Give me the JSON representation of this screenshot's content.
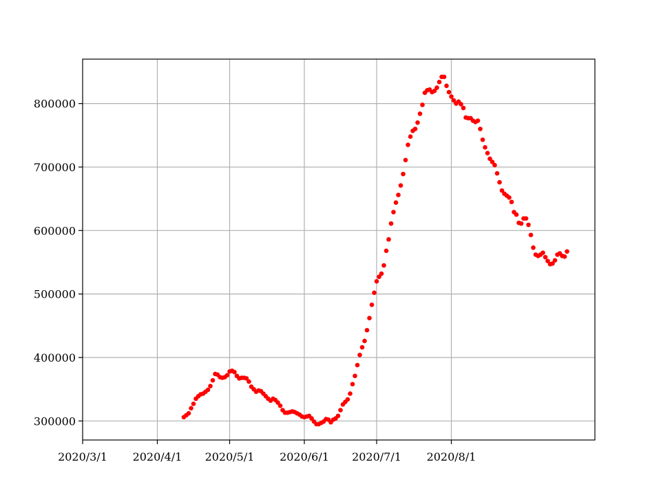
{
  "chart_data": {
    "type": "scatter",
    "title": "",
    "xlabel": "",
    "ylabel": "",
    "grid": true,
    "legend": "none",
    "marker_color": "#ff0000",
    "x_axis": {
      "type": "date",
      "range": [
        "2020-03-01",
        "2020-09-08"
      ],
      "ticks": [
        {
          "value": "2020-03-01",
          "label": "2020/3/1"
        },
        {
          "value": "2020-04-01",
          "label": "2020/4/1"
        },
        {
          "value": "2020-05-01",
          "label": "2020/5/1"
        },
        {
          "value": "2020-06-01",
          "label": "2020/6/1"
        },
        {
          "value": "2020-07-01",
          "label": "2020/7/1"
        },
        {
          "value": "2020-08-01",
          "label": "2020/8/1"
        }
      ]
    },
    "y_axis": {
      "range": [
        270000,
        870000
      ],
      "ticks": [
        {
          "value": 300000,
          "label": "300000"
        },
        {
          "value": 400000,
          "label": "400000"
        },
        {
          "value": 500000,
          "label": "500000"
        },
        {
          "value": 600000,
          "label": "600000"
        },
        {
          "value": 700000,
          "label": "700000"
        },
        {
          "value": 800000,
          "label": "800000"
        }
      ]
    },
    "series": [
      {
        "points": [
          [
            "2020-04-12",
            306000
          ],
          [
            "2020-04-13",
            309000
          ],
          [
            "2020-04-14",
            312000
          ],
          [
            "2020-04-15",
            320000
          ],
          [
            "2020-04-16",
            327000
          ],
          [
            "2020-04-17",
            335000
          ],
          [
            "2020-04-18",
            339000
          ],
          [
            "2020-04-19",
            342000
          ],
          [
            "2020-04-20",
            343000
          ],
          [
            "2020-04-21",
            346000
          ],
          [
            "2020-04-22",
            349000
          ],
          [
            "2020-04-23",
            355000
          ],
          [
            "2020-04-24",
            364000
          ],
          [
            "2020-04-25",
            374000
          ],
          [
            "2020-04-26",
            373000
          ],
          [
            "2020-04-27",
            369000
          ],
          [
            "2020-04-28",
            368000
          ],
          [
            "2020-04-29",
            369000
          ],
          [
            "2020-04-30",
            372000
          ],
          [
            "2020-05-01",
            378000
          ],
          [
            "2020-05-02",
            379000
          ],
          [
            "2020-05-03",
            377000
          ],
          [
            "2020-05-04",
            371000
          ],
          [
            "2020-05-05",
            367000
          ],
          [
            "2020-05-06",
            368000
          ],
          [
            "2020-05-07",
            368000
          ],
          [
            "2020-05-08",
            367000
          ],
          [
            "2020-05-09",
            362000
          ],
          [
            "2020-05-10",
            354000
          ],
          [
            "2020-05-11",
            350000
          ],
          [
            "2020-05-12",
            346000
          ],
          [
            "2020-05-13",
            348000
          ],
          [
            "2020-05-14",
            347000
          ],
          [
            "2020-05-15",
            343000
          ],
          [
            "2020-05-16",
            339000
          ],
          [
            "2020-05-17",
            335000
          ],
          [
            "2020-05-18",
            332000
          ],
          [
            "2020-05-19",
            335000
          ],
          [
            "2020-05-20",
            333000
          ],
          [
            "2020-05-21",
            329000
          ],
          [
            "2020-05-22",
            324000
          ],
          [
            "2020-05-23",
            317000
          ],
          [
            "2020-05-24",
            313000
          ],
          [
            "2020-05-25",
            313000
          ],
          [
            "2020-05-26",
            314000
          ],
          [
            "2020-05-27",
            315000
          ],
          [
            "2020-05-28",
            314000
          ],
          [
            "2020-05-29",
            312000
          ],
          [
            "2020-05-30",
            310000
          ],
          [
            "2020-05-31",
            307000
          ],
          [
            "2020-06-01",
            306000
          ],
          [
            "2020-06-02",
            307000
          ],
          [
            "2020-06-03",
            308000
          ],
          [
            "2020-06-04",
            304000
          ],
          [
            "2020-06-05",
            299000
          ],
          [
            "2020-06-06",
            295000
          ],
          [
            "2020-06-07",
            295000
          ],
          [
            "2020-06-08",
            297000
          ],
          [
            "2020-06-09",
            299000
          ],
          [
            "2020-06-10",
            303000
          ],
          [
            "2020-06-11",
            302000
          ],
          [
            "2020-06-12",
            298000
          ],
          [
            "2020-06-13",
            302000
          ],
          [
            "2020-06-14",
            304000
          ],
          [
            "2020-06-15",
            308000
          ],
          [
            "2020-06-16",
            317000
          ],
          [
            "2020-06-17",
            326000
          ],
          [
            "2020-06-18",
            330000
          ],
          [
            "2020-06-19",
            334000
          ],
          [
            "2020-06-20",
            343000
          ],
          [
            "2020-06-21",
            358000
          ],
          [
            "2020-06-22",
            371000
          ],
          [
            "2020-06-23",
            388000
          ],
          [
            "2020-06-24",
            404000
          ],
          [
            "2020-06-25",
            416000
          ],
          [
            "2020-06-26",
            426000
          ],
          [
            "2020-06-27",
            443000
          ],
          [
            "2020-06-28",
            462000
          ],
          [
            "2020-06-29",
            483000
          ],
          [
            "2020-06-30",
            502000
          ],
          [
            "2020-07-01",
            520000
          ],
          [
            "2020-07-02",
            527000
          ],
          [
            "2020-07-03",
            532000
          ],
          [
            "2020-07-04",
            545000
          ],
          [
            "2020-07-05",
            568000
          ],
          [
            "2020-07-06",
            586000
          ],
          [
            "2020-07-07",
            611000
          ],
          [
            "2020-07-08",
            629000
          ],
          [
            "2020-07-09",
            644000
          ],
          [
            "2020-07-10",
            656000
          ],
          [
            "2020-07-11",
            671000
          ],
          [
            "2020-07-12",
            689000
          ],
          [
            "2020-07-13",
            711000
          ],
          [
            "2020-07-14",
            735000
          ],
          [
            "2020-07-15",
            748000
          ],
          [
            "2020-07-16",
            757000
          ],
          [
            "2020-07-17",
            760000
          ],
          [
            "2020-07-18",
            770000
          ],
          [
            "2020-07-19",
            784000
          ],
          [
            "2020-07-20",
            798000
          ],
          [
            "2020-07-21",
            817000
          ],
          [
            "2020-07-22",
            821000
          ],
          [
            "2020-07-23",
            822000
          ],
          [
            "2020-07-24",
            818000
          ],
          [
            "2020-07-25",
            820000
          ],
          [
            "2020-07-26",
            825000
          ],
          [
            "2020-07-27",
            834000
          ],
          [
            "2020-07-28",
            842000
          ],
          [
            "2020-07-29",
            842000
          ],
          [
            "2020-07-30",
            828000
          ],
          [
            "2020-07-31",
            818000
          ],
          [
            "2020-08-01",
            811000
          ],
          [
            "2020-08-02",
            805000
          ],
          [
            "2020-08-03",
            800000
          ],
          [
            "2020-08-04",
            803000
          ],
          [
            "2020-08-05",
            799000
          ],
          [
            "2020-08-06",
            793000
          ],
          [
            "2020-08-07",
            778000
          ],
          [
            "2020-08-08",
            777000
          ],
          [
            "2020-08-09",
            777000
          ],
          [
            "2020-08-10",
            773000
          ],
          [
            "2020-08-11",
            771000
          ],
          [
            "2020-08-12",
            773000
          ],
          [
            "2020-08-13",
            760000
          ],
          [
            "2020-08-14",
            743000
          ],
          [
            "2020-08-15",
            731000
          ],
          [
            "2020-08-16",
            722000
          ],
          [
            "2020-08-17",
            713000
          ],
          [
            "2020-08-18",
            708000
          ],
          [
            "2020-08-19",
            703000
          ],
          [
            "2020-08-20",
            690000
          ],
          [
            "2020-08-21",
            676000
          ],
          [
            "2020-08-22",
            663000
          ],
          [
            "2020-08-23",
            658000
          ],
          [
            "2020-08-24",
            655000
          ],
          [
            "2020-08-25",
            652000
          ],
          [
            "2020-08-26",
            645000
          ],
          [
            "2020-08-27",
            629000
          ],
          [
            "2020-08-28",
            625000
          ],
          [
            "2020-08-29",
            612000
          ],
          [
            "2020-08-30",
            611000
          ],
          [
            "2020-08-31",
            619000
          ],
          [
            "2020-09-01",
            619000
          ],
          [
            "2020-09-02",
            609000
          ],
          [
            "2020-09-03",
            593000
          ],
          [
            "2020-09-04",
            573000
          ],
          [
            "2020-09-05",
            562000
          ],
          [
            "2020-09-06",
            560000
          ],
          [
            "2020-09-07",
            562000
          ],
          [
            "2020-09-08",
            565000
          ],
          [
            "2020-09-09",
            558000
          ],
          [
            "2020-09-10",
            552000
          ],
          [
            "2020-09-11",
            547000
          ],
          [
            "2020-09-12",
            548000
          ],
          [
            "2020-09-13",
            553000
          ],
          [
            "2020-09-14",
            562000
          ],
          [
            "2020-09-15",
            564000
          ],
          [
            "2020-09-16",
            560000
          ],
          [
            "2020-09-17",
            559000
          ],
          [
            "2020-09-18",
            567000
          ]
        ]
      }
    ]
  }
}
